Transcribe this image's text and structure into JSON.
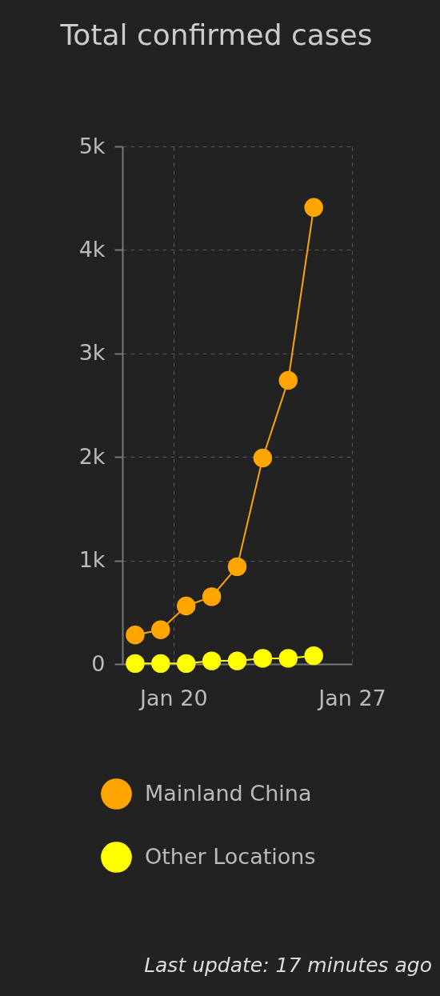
{
  "chart_data": {
    "type": "line",
    "title": "Total confirmed cases",
    "x": [
      "--01-18T12:00",
      "--01-19T12:00",
      "--01-20T12:00",
      "--01-21T12:00",
      "--01-22T12:00",
      "--01-23T12:00",
      "--01-24T12:00",
      "--01-25T12:00"
    ],
    "series": [
      {
        "name": "Mainland China",
        "color": "#ffa500",
        "values": [
          280,
          330,
          560,
          650,
          940,
          1990,
          2740,
          4410
        ]
      },
      {
        "name": "Other Locations",
        "color": "#ffff00",
        "values": [
          5,
          5,
          5,
          30,
          30,
          55,
          55,
          80
        ]
      }
    ],
    "xlim": [
      "--01-18",
      "--01-27"
    ],
    "xticks": [
      {
        "value": "--01-20",
        "label": "Jan 20"
      },
      {
        "value": "--01-27",
        "label": "Jan 27"
      }
    ],
    "ylim": [
      0,
      5000
    ],
    "yticks": [
      0,
      {
        "value": 1000,
        "label": "1k"
      },
      {
        "value": 2000,
        "label": "2k"
      },
      {
        "value": 3000,
        "label": "3k"
      },
      {
        "value": 4000,
        "label": "4k"
      },
      {
        "value": 5000,
        "label": "5k"
      }
    ],
    "grid": true,
    "legend": "bottom",
    "marker": "circle",
    "line_style": "solid",
    "annotations": [
      "Last update: 17 minutes ago"
    ]
  }
}
